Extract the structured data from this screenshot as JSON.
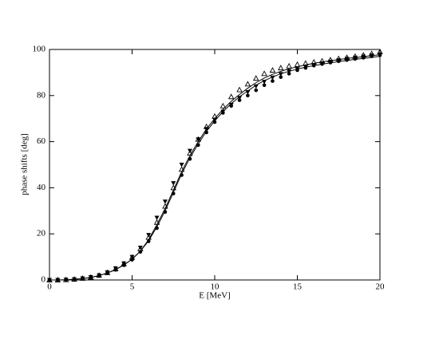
{
  "chart_data": {
    "type": "line",
    "xlabel": "E  [MeV]",
    "ylabel": "phase shifts  [deg]",
    "x": [
      0,
      0.5,
      1,
      1.5,
      2,
      2.5,
      3,
      3.5,
      4,
      4.5,
      5,
      5.5,
      6,
      6.5,
      7,
      7.5,
      8,
      8.5,
      9,
      9.5,
      10,
      10.5,
      11,
      11.5,
      12,
      12.5,
      13,
      13.5,
      14,
      14.5,
      15,
      15.5,
      16,
      16.5,
      17,
      17.5,
      18,
      18.5,
      19,
      19.5,
      20
    ],
    "series": [
      {
        "marker": "line",
        "color": "#000000",
        "values": [
          0,
          0,
          0.1,
          0.3,
          0.6,
          1.1,
          1.9,
          3,
          4.5,
          6.5,
          9,
          12.5,
          17,
          23,
          30,
          38,
          46,
          53,
          59,
          64.5,
          69,
          73,
          76.5,
          79.5,
          82,
          84.5,
          86.5,
          88,
          89.5,
          90.5,
          91.5,
          92.3,
          93,
          93.6,
          94.2,
          94.7,
          95.2,
          95.7,
          96.1,
          96.6,
          97
        ]
      },
      {
        "marker": "line",
        "color": "#000000",
        "values": [
          0,
          0,
          0.1,
          0.3,
          0.6,
          1.1,
          1.9,
          3,
          4.5,
          6.5,
          9,
          12.5,
          17.5,
          24,
          31,
          39,
          47,
          54,
          60,
          65.5,
          70,
          74,
          77.5,
          80.5,
          83.2,
          85.6,
          87.6,
          89.2,
          90.5,
          91.6,
          92.5,
          93.3,
          94,
          94.6,
          95.1,
          95.6,
          96.1,
          96.5,
          96.9,
          97.3,
          97.7
        ]
      },
      {
        "marker": "triangle-up",
        "color": "#000000",
        "values": [
          0,
          0,
          0.1,
          0.3,
          0.7,
          1.2,
          2,
          3.2,
          4.8,
          7,
          9.8,
          13.5,
          18.5,
          25,
          32,
          40,
          48,
          55,
          61,
          66.5,
          71,
          75.5,
          79.5,
          82.5,
          85,
          87.5,
          89.5,
          91,
          92,
          92.8,
          93.5,
          94,
          94.5,
          95,
          95.5,
          96,
          96.5,
          97,
          97.5,
          98.2,
          99
        ]
      },
      {
        "marker": "triangle-down",
        "color": "#000000",
        "values": [
          0,
          0,
          0.1,
          0.3,
          0.7,
          1.2,
          2,
          3.3,
          5,
          7.2,
          10,
          14,
          19.5,
          27,
          34,
          42,
          50,
          56,
          61,
          65.5,
          69.5,
          73,
          76,
          79,
          81.5,
          84,
          86,
          87.8,
          89.3,
          90.5,
          91.5,
          92.4,
          93.2,
          94,
          94.7,
          95.3,
          95.9,
          96.4,
          96.9,
          97.4,
          97.8
        ]
      },
      {
        "marker": "circle",
        "color": "#000000",
        "values": [
          0,
          0,
          0.1,
          0.3,
          0.6,
          1.1,
          1.8,
          2.9,
          4.4,
          6.4,
          8.8,
          12.2,
          16.8,
          22.5,
          29.5,
          37.5,
          45.5,
          52.5,
          58.5,
          64,
          68.5,
          72.5,
          75.5,
          78,
          80,
          82.3,
          84.5,
          86.3,
          88,
          89.5,
          91,
          92,
          93,
          93.7,
          94.3,
          94.9,
          95.4,
          95.9,
          96.4,
          97,
          97.5
        ]
      }
    ],
    "xlim": [
      0,
      20
    ],
    "xticks": [
      0,
      5,
      10,
      15,
      20
    ],
    "ylim": [
      0,
      100
    ],
    "yticks": [
      0,
      20,
      40,
      60,
      80,
      100
    ]
  }
}
